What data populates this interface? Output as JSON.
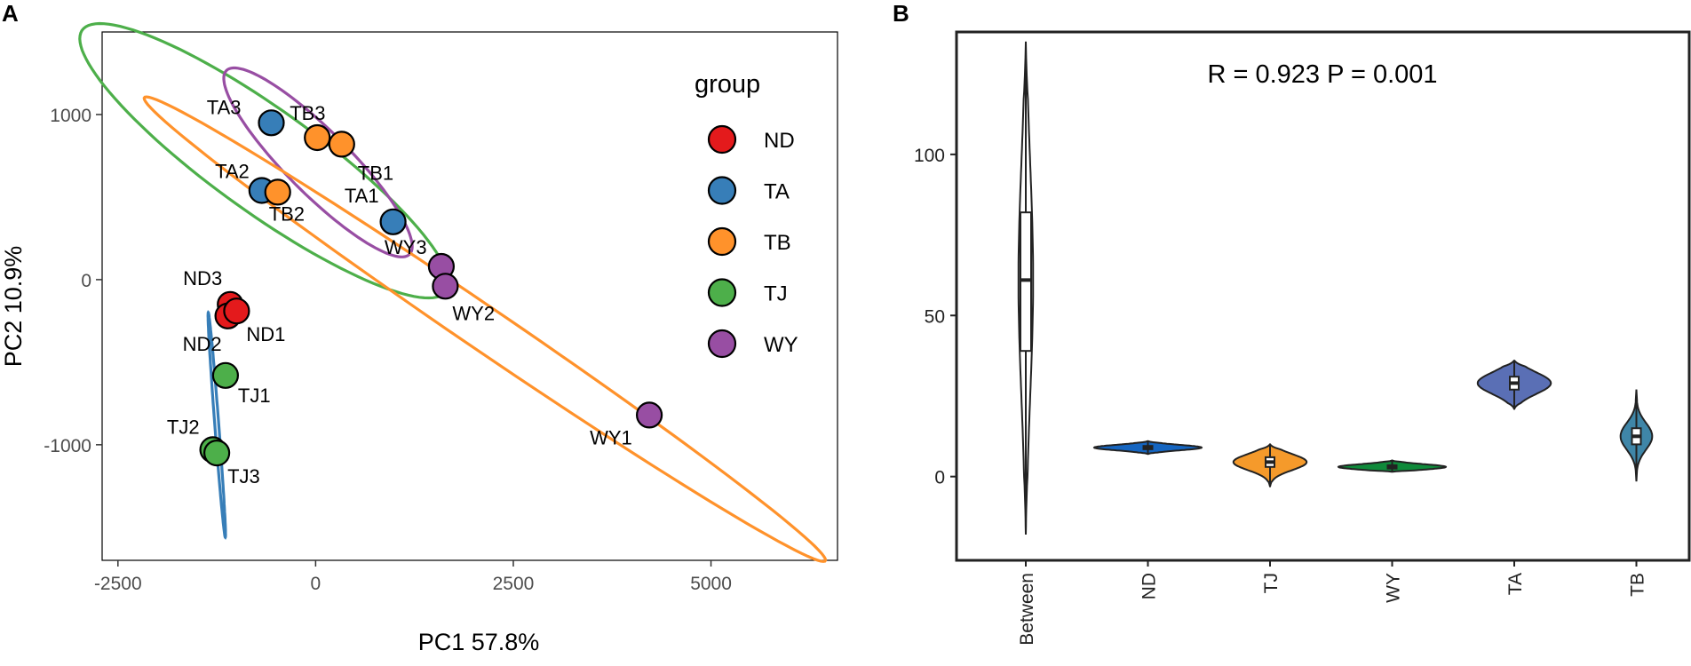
{
  "panel_a_letter": "A",
  "panel_b_letter": "B",
  "chart_data": [
    {
      "type": "scatter",
      "panel": "A",
      "xlabel": "PC1 57.8%",
      "ylabel": "PC2 10.9%",
      "xlim": [
        -2700,
        6600
      ],
      "ylim": [
        -1700,
        1500
      ],
      "xticks": [
        -2500,
        0,
        2500,
        5000
      ],
      "xtick_labels": [
        "-2500",
        "0",
        "2500",
        "5000"
      ],
      "yticks": [
        1000,
        0,
        -1000
      ],
      "ytick_labels": [
        "1000",
        "0",
        "-1000"
      ],
      "grid": false,
      "legend": {
        "title": "group",
        "position": "right",
        "entries": [
          {
            "label": "ND",
            "color": "#e41a1c"
          },
          {
            "label": "TA",
            "color": "#377eb8"
          },
          {
            "label": "TB",
            "color": "#ff922b"
          },
          {
            "label": "TJ",
            "color": "#4daf4a"
          },
          {
            "label": "WY",
            "color": "#984ea3"
          }
        ]
      },
      "points": [
        {
          "name": "TA3",
          "group": "TA",
          "x": -560,
          "y": 950
        },
        {
          "name": "TA2",
          "group": "TA",
          "x": -680,
          "y": 540
        },
        {
          "name": "TA1",
          "group": "TA",
          "x": 980,
          "y": 350
        },
        {
          "name": "TB3",
          "group": "TB",
          "x": 20,
          "y": 860
        },
        {
          "name": "TB1",
          "group": "TB",
          "x": 330,
          "y": 820
        },
        {
          "name": "TB2",
          "group": "TB",
          "x": -480,
          "y": 530
        },
        {
          "name": "WY3",
          "group": "WY",
          "x": 1590,
          "y": 80
        },
        {
          "name": "WY2",
          "group": "WY",
          "x": 1640,
          "y": -40
        },
        {
          "name": "WY1",
          "group": "WY",
          "x": 4220,
          "y": -820
        },
        {
          "name": "ND3",
          "group": "ND",
          "x": -1080,
          "y": -150
        },
        {
          "name": "ND2",
          "group": "ND",
          "x": -1110,
          "y": -220
        },
        {
          "name": "ND1",
          "group": "ND",
          "x": -1000,
          "y": -190
        },
        {
          "name": "TJ1",
          "group": "TJ",
          "x": -1140,
          "y": -580
        },
        {
          "name": "TJ2",
          "group": "TJ",
          "x": -1300,
          "y": -1030
        },
        {
          "name": "TJ3",
          "group": "TJ",
          "x": -1250,
          "y": -1050
        }
      ],
      "ellipses": [
        {
          "group": "TJ",
          "cx": -650,
          "cy": 720,
          "rx": 2450,
          "ry": 360,
          "angle_deg": -18
        },
        {
          "group": "WY",
          "cx": 30,
          "cy": 710,
          "rx": 1300,
          "ry": 240,
          "angle_deg": -24
        },
        {
          "group": "TB",
          "cx": 2140,
          "cy": -300,
          "rx": 4530,
          "ry": 150,
          "angle_deg": -18
        },
        {
          "group": "TA",
          "cx": -1250,
          "cy": -880,
          "rx": 690,
          "ry": 25,
          "angle_deg": -81
        }
      ]
    },
    {
      "type": "violin",
      "panel": "B",
      "annotation": "R = 0.923 P = 0.001",
      "categories": [
        "Between",
        "ND",
        "TJ",
        "WY",
        "TA",
        "TB"
      ],
      "ylim": [
        -26,
        138
      ],
      "yticks": [
        0,
        50,
        100
      ],
      "ytick_labels": [
        "0",
        "50",
        "100"
      ],
      "grid": false,
      "series": [
        {
          "name": "Between",
          "color": "#ffffff",
          "min": -18,
          "max": 135,
          "q1": 39,
          "median": 61,
          "q3": 82,
          "violin_halfwidth_units": 0.06
        },
        {
          "name": "ND",
          "color": "#1565c0",
          "min": 7,
          "max": 11,
          "q1": 8.5,
          "median": 9,
          "q3": 9.5,
          "violin_halfwidth_units": 0.44
        },
        {
          "name": "TJ",
          "color": "#f59a2b",
          "min": -3,
          "max": 10,
          "q1": 3,
          "median": 4.5,
          "q3": 6,
          "violin_halfwidth_units": 0.3
        },
        {
          "name": "WY",
          "color": "#0f8a3a",
          "min": 1.5,
          "max": 5,
          "q1": 2.5,
          "median": 3,
          "q3": 3.5,
          "violin_halfwidth_units": 0.44
        },
        {
          "name": "TA",
          "color": "#5a6fb5",
          "min": 21,
          "max": 36,
          "q1": 27,
          "median": 29,
          "q3": 31,
          "violin_halfwidth_units": 0.3
        },
        {
          "name": "TB",
          "color": "#3f86a8",
          "min": -1.5,
          "max": 27,
          "q1": 10,
          "median": 12.5,
          "q3": 15,
          "violin_halfwidth_units": 0.13
        }
      ]
    }
  ]
}
